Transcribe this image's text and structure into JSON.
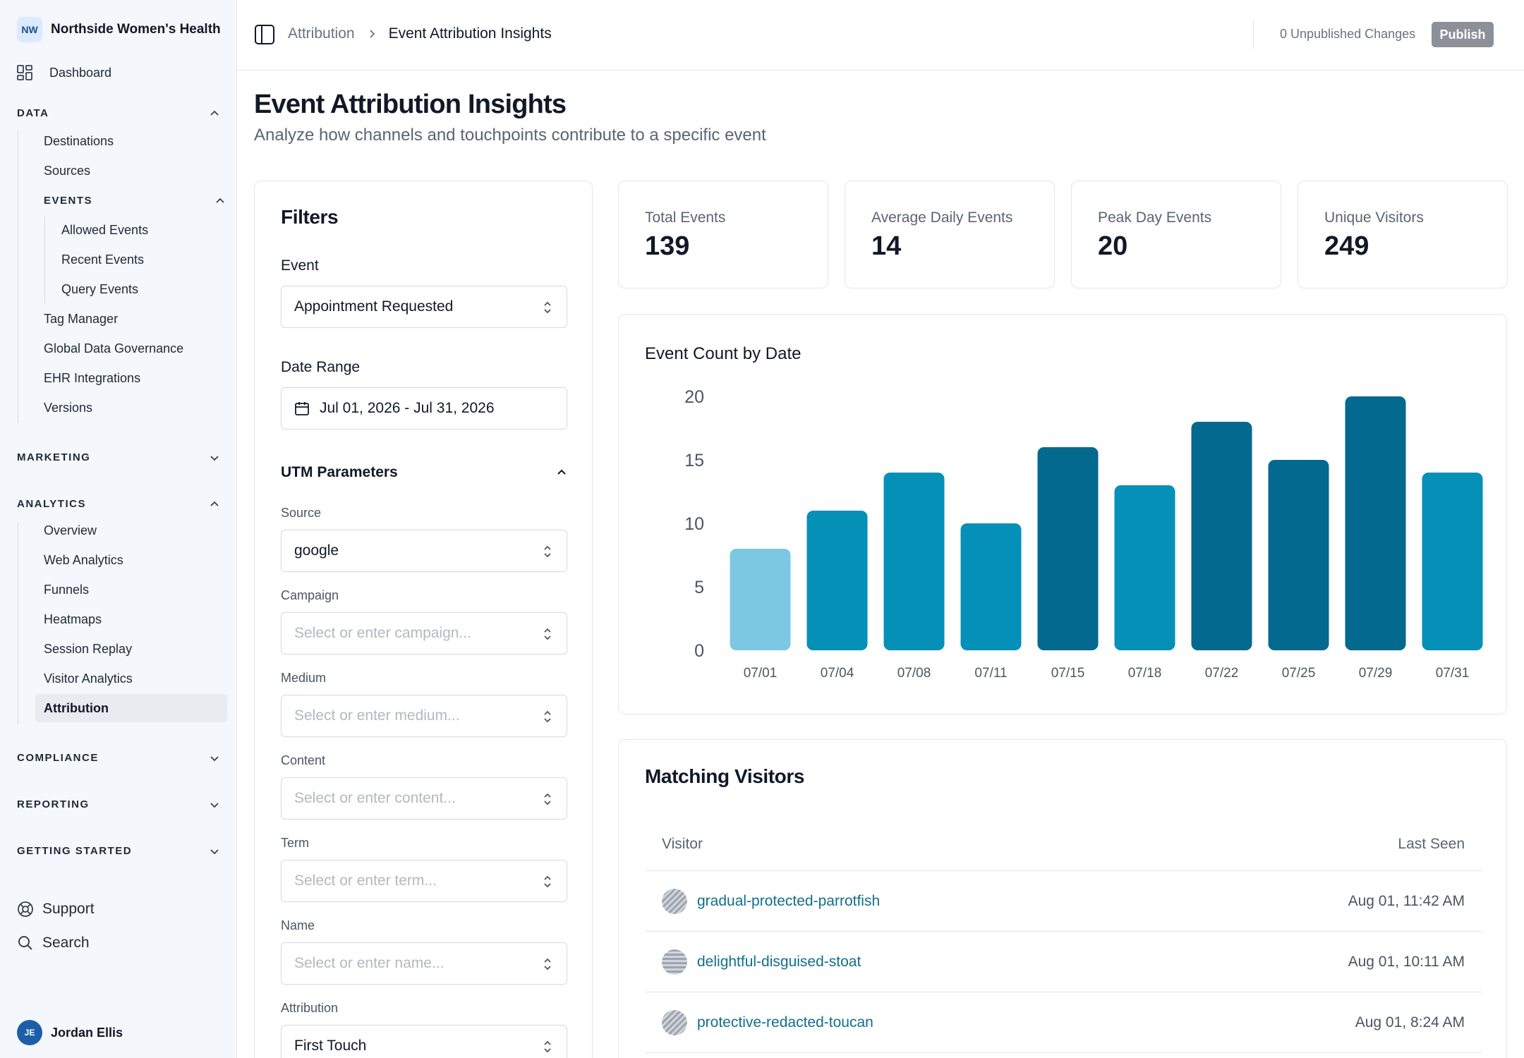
{
  "sidebar": {
    "org_badge": "NW",
    "org_name": "Northside Women's Health",
    "dashboard": "Dashboard",
    "data_section": "DATA",
    "data_items": [
      "Destinations",
      "Sources"
    ],
    "events_section": "EVENTS",
    "events_items": [
      "Allowed Events",
      "Recent Events",
      "Query Events"
    ],
    "data_items_after": [
      "Tag Manager",
      "Global Data Governance",
      "EHR Integrations",
      "Versions"
    ],
    "marketing_section": "MARKETING",
    "analytics_section": "ANALYTICS",
    "analytics_items": [
      "Overview",
      "Web Analytics",
      "Funnels",
      "Heatmaps",
      "Session Replay",
      "Visitor Analytics",
      "Attribution"
    ],
    "compliance_section": "COMPLIANCE",
    "reporting_section": "REPORTING",
    "getting_started_section": "GETTING STARTED",
    "support": "Support",
    "search": "Search",
    "user_initials": "JE",
    "user_name": "Jordan Ellis"
  },
  "topbar": {
    "breadcrumb_parent": "Attribution",
    "breadcrumb_current": "Event Attribution Insights",
    "unpublished": "0 Unpublished Changes",
    "publish_label": "Publish"
  },
  "header": {
    "title": "Event Attribution Insights",
    "subtitle": "Analyze how channels and touchpoints contribute to a specific event"
  },
  "filters": {
    "title": "Filters",
    "event_label": "Event",
    "event_value": "Appointment Requested",
    "date_label": "Date Range",
    "date_value": "Jul 01, 2026 - Jul 31, 2026",
    "utm_label": "UTM Parameters",
    "source_label": "Source",
    "source_value": "google",
    "campaign_label": "Campaign",
    "campaign_placeholder": "Select or enter campaign...",
    "medium_label": "Medium",
    "medium_placeholder": "Select or enter medium...",
    "content_label": "Content",
    "content_placeholder": "Select or enter content...",
    "term_label": "Term",
    "term_placeholder": "Select or enter term...",
    "name_label": "Name",
    "name_placeholder": "Select or enter name...",
    "attribution_label": "Attribution",
    "attribution_value": "First Touch"
  },
  "stats": [
    {
      "label": "Total Events",
      "value": "139"
    },
    {
      "label": "Average Daily Events",
      "value": "14"
    },
    {
      "label": "Peak Day Events",
      "value": "20"
    },
    {
      "label": "Unique Visitors",
      "value": "249"
    }
  ],
  "chart_title": "Event Count by Date",
  "chart_data": {
    "type": "bar",
    "title": "Event Count by Date",
    "categories": [
      "07/01",
      "07/04",
      "07/08",
      "07/11",
      "07/15",
      "07/18",
      "07/22",
      "07/25",
      "07/29",
      "07/31"
    ],
    "values": [
      8,
      11,
      14,
      10,
      16,
      13,
      18,
      15,
      20,
      14
    ],
    "colors": [
      "#7cc8e3",
      "#0590b8",
      "#0590b8",
      "#0590b8",
      "#04698f",
      "#0590b8",
      "#04698f",
      "#04698f",
      "#04698f",
      "#0590b8"
    ],
    "yticks": [
      0,
      5,
      10,
      15,
      20
    ],
    "ylim": [
      0,
      20
    ],
    "xlabel": "",
    "ylabel": "",
    "grid": false
  },
  "visitors": {
    "title": "Matching Visitors",
    "col_visitor": "Visitor",
    "col_last_seen": "Last Seen",
    "rows": [
      {
        "name": "gradual-protected-parrotfish",
        "last_seen": "Aug 01, 11:42 AM",
        "pattern": "diagonal"
      },
      {
        "name": "delightful-disguised-stoat",
        "last_seen": "Aug 01, 10:11 AM",
        "pattern": "horizontal"
      },
      {
        "name": "protective-redacted-toucan",
        "last_seen": "Aug 01, 8:24 AM",
        "pattern": "diagonal"
      }
    ]
  }
}
